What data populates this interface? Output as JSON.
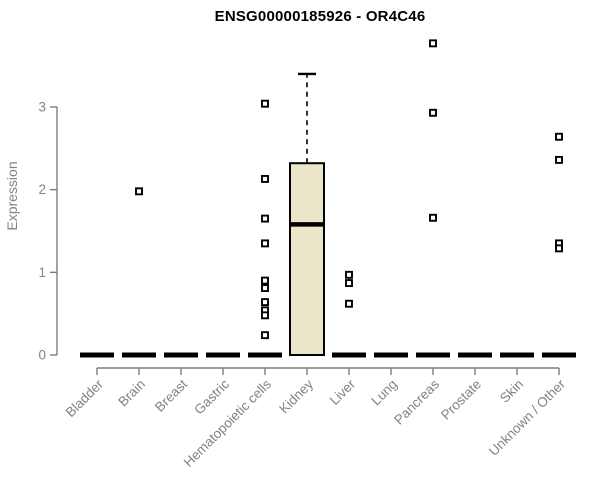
{
  "title": "ENSG00000185926 - OR4C46",
  "chart_data": {
    "type": "boxplot",
    "title": "ENSG00000185926 - OR4C46",
    "xlabel": "",
    "ylabel": "Expression",
    "ylim": [
      0,
      3.9
    ],
    "yticks": [
      0,
      1,
      2,
      3
    ],
    "grid": false,
    "legend": null,
    "categories": [
      "Bladder",
      "Brain",
      "Breast",
      "Gastric",
      "Hematopoietic cells",
      "Kidney",
      "Liver",
      "Lung",
      "Pancreas",
      "Prostate",
      "Skin",
      "Unknown / Other"
    ],
    "boxes": [
      {
        "category": "Bladder",
        "median": 0,
        "q1": 0,
        "q3": 0,
        "whisker_low": 0,
        "whisker_high": 0,
        "outliers": []
      },
      {
        "category": "Brain",
        "median": 0,
        "q1": 0,
        "q3": 0,
        "whisker_low": 0,
        "whisker_high": 0,
        "outliers": [
          1.98
        ]
      },
      {
        "category": "Breast",
        "median": 0,
        "q1": 0,
        "q3": 0,
        "whisker_low": 0,
        "whisker_high": 0,
        "outliers": []
      },
      {
        "category": "Gastric",
        "median": 0,
        "q1": 0,
        "q3": 0,
        "whisker_low": 0,
        "whisker_high": 0,
        "outliers": []
      },
      {
        "category": "Hematopoietic cells",
        "median": 0,
        "q1": 0,
        "q3": 0,
        "whisker_low": 0,
        "whisker_high": 0,
        "outliers": [
          3.04,
          2.13,
          1.65,
          1.35,
          0.9,
          0.81,
          0.64,
          0.54,
          0.48,
          0.24
        ]
      },
      {
        "category": "Kidney",
        "median": 1.58,
        "q1": 0,
        "q3": 2.32,
        "whisker_low": 0,
        "whisker_high": 3.4,
        "outliers": []
      },
      {
        "category": "Liver",
        "median": 0,
        "q1": 0,
        "q3": 0,
        "whisker_low": 0,
        "whisker_high": 0,
        "outliers": [
          0.97,
          0.87,
          0.62
        ]
      },
      {
        "category": "Lung",
        "median": 0,
        "q1": 0,
        "q3": 0,
        "whisker_low": 0,
        "whisker_high": 0,
        "outliers": []
      },
      {
        "category": "Pancreas",
        "median": 0,
        "q1": 0,
        "q3": 0,
        "whisker_low": 0,
        "whisker_high": 0,
        "outliers": [
          3.77,
          2.93,
          1.66
        ]
      },
      {
        "category": "Prostate",
        "median": 0,
        "q1": 0,
        "q3": 0,
        "whisker_low": 0,
        "whisker_high": 0,
        "outliers": []
      },
      {
        "category": "Skin",
        "median": 0,
        "q1": 0,
        "q3": 0,
        "whisker_low": 0,
        "whisker_high": 0,
        "outliers": []
      },
      {
        "category": "Unknown / Other",
        "median": 0,
        "q1": 0,
        "q3": 0,
        "whisker_low": 0,
        "whisker_high": 0,
        "outliers": [
          2.64,
          2.36,
          1.35,
          1.29
        ]
      }
    ],
    "colors": {
      "box_fill": "#ebe5ca",
      "box_border": "#000000",
      "median": "#000000",
      "outlier_stroke": "#000000",
      "outlier_fill": "#ffffff",
      "axis": "#7d7d7d",
      "tick_label": "#838383",
      "title": "#000000",
      "background": "#ffffff"
    }
  }
}
